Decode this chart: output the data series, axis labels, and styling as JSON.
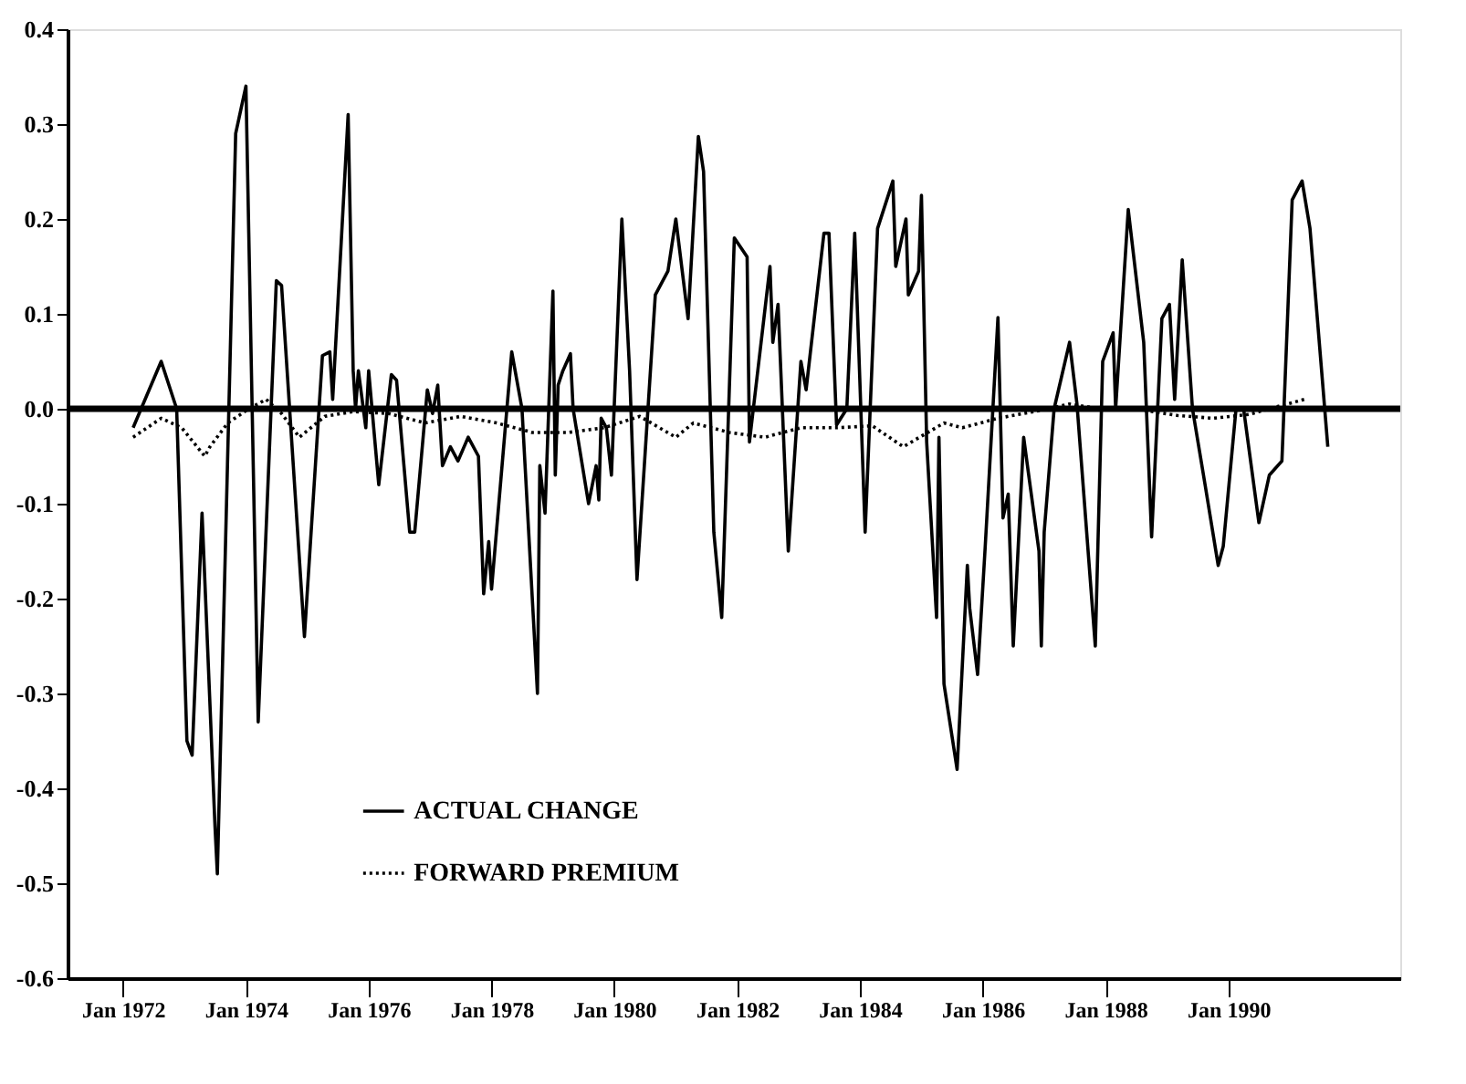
{
  "chart_data": {
    "type": "line",
    "xlim": [
      "1971-02-05",
      "1992-10-19"
    ],
    "xticks": [
      {
        "value": "1972-01-01",
        "label": "Jan 1972"
      },
      {
        "value": "1974-01-01",
        "label": "Jan 1974"
      },
      {
        "value": "1976-01-01",
        "label": "Jan 1976"
      },
      {
        "value": "1978-01-01",
        "label": "Jan 1978"
      },
      {
        "value": "1980-01-01",
        "label": "Jan 1980"
      },
      {
        "value": "1982-01-01",
        "label": "Jan 1982"
      },
      {
        "value": "1984-01-01",
        "label": "Jan 1984"
      },
      {
        "value": "1986-01-01",
        "label": "Jan 1986"
      },
      {
        "value": "1988-01-01",
        "label": "Jan 1988"
      },
      {
        "value": "1990-01-01",
        "label": "Jan 1990"
      }
    ],
    "ylim": [
      -0.6,
      0.4
    ],
    "yticks": [
      -0.6,
      -0.5,
      -0.4,
      -0.3,
      -0.2,
      -0.1,
      {
        "value": 0,
        "label": "0.0"
      },
      0.1,
      0.2,
      0.3,
      0.4
    ],
    "grid": false,
    "legend": "bottom left",
    "ref_lines": [
      {
        "axis": "y",
        "value": 0,
        "color": "#000000",
        "line_style": "solid"
      }
    ],
    "series": [
      {
        "name": "ACTUAL CHANGE",
        "color": "#000000",
        "line_style": "solid",
        "x": [
          "1972-03-01",
          "1972-08-15",
          "1972-11-15",
          "1973-01-15",
          "1973-02-15",
          "1973-04-15",
          "1973-07-01",
          "1973-07-15",
          "1973-11-01",
          "1974-01-01",
          "1974-03-15",
          "1974-07-01",
          "1974-08-01",
          "1974-12-15",
          "1975-04-01",
          "1975-05-15",
          "1975-06-01",
          "1975-09-01",
          "1975-10-01",
          "1975-10-15",
          "1975-11-01",
          "1975-12-15",
          "1976-01-01",
          "1976-03-01",
          "1976-05-15",
          "1976-06-15",
          "1976-09-01",
          "1976-10-01",
          "1976-12-15",
          "1977-01-15",
          "1977-02-15",
          "1977-03-15",
          "1977-05-01",
          "1977-06-15",
          "1977-08-15",
          "1977-10-15",
          "1977-11-15",
          "1977-12-15",
          "1978-01-01",
          "1978-05-01",
          "1978-07-01",
          "1978-10-01",
          "1978-10-15",
          "1978-11-15",
          "1979-01-01",
          "1979-01-15",
          "1979-02-01",
          "1979-03-01",
          "1979-04-15",
          "1979-05-01",
          "1979-08-01",
          "1979-09-15",
          "1979-10-01",
          "1979-10-15",
          "1979-11-15",
          "1979-12-15",
          "1980-02-15",
          "1980-04-01",
          "1980-05-15",
          "1980-09-01",
          "1980-11-15",
          "1981-01-01",
          "1981-03-15",
          "1981-05-15",
          "1981-06-15",
          "1981-08-15",
          "1981-10-01",
          "1981-12-15",
          "1982-03-01",
          "1982-03-15",
          "1982-07-15",
          "1982-08-01",
          "1982-09-01",
          "1982-11-01",
          "1983-01-15",
          "1983-02-15",
          "1983-06-01",
          "1983-07-01",
          "1983-08-15",
          "1983-10-15",
          "1983-12-01",
          "1984-02-01",
          "1984-04-15",
          "1984-07-15",
          "1984-08-01",
          "1984-10-01",
          "1984-10-15",
          "1984-12-15",
          "1985-01-01",
          "1985-02-01",
          "1985-04-01",
          "1985-04-15",
          "1985-05-15",
          "1985-08-01",
          "1985-10-01",
          "1985-10-15",
          "1985-12-01",
          "1986-01-15",
          "1986-04-01",
          "1986-05-01",
          "1986-06-01",
          "1986-07-01",
          "1986-09-01",
          "1986-10-01",
          "1986-12-01",
          "1986-12-15",
          "1987-01-01",
          "1987-03-01",
          "1987-06-01",
          "1987-07-15",
          "1987-11-01",
          "1987-12-15",
          "1988-02-15",
          "1988-03-01",
          "1988-05-15",
          "1988-08-15",
          "1988-10-01",
          "1988-12-01",
          "1989-01-15",
          "1989-02-15",
          "1989-04-01",
          "1989-06-01",
          "1989-08-15",
          "1989-11-01",
          "1989-12-01",
          "1990-02-15",
          "1990-04-01",
          "1990-07-01",
          "1990-09-01",
          "1990-11-15",
          "1991-01-15",
          "1991-03-15",
          "1991-05-01",
          "1991-08-15"
        ],
        "values": [
          -0.02,
          0.05,
          0.0,
          -0.35,
          -0.365,
          -0.11,
          -0.44,
          -0.49,
          0.29,
          0.34,
          -0.33,
          0.135,
          0.13,
          -0.24,
          0.056,
          0.06,
          0.01,
          0.31,
          0.04,
          0.0,
          0.04,
          -0.02,
          0.04,
          -0.08,
          0.036,
          0.03,
          -0.13,
          -0.13,
          0.02,
          -0.005,
          0.025,
          -0.06,
          -0.04,
          -0.055,
          -0.03,
          -0.05,
          -0.195,
          -0.14,
          -0.19,
          0.06,
          0.0,
          -0.3,
          -0.06,
          -0.11,
          0.124,
          -0.07,
          0.025,
          0.04,
          0.058,
          0.0,
          -0.1,
          -0.06,
          -0.096,
          -0.01,
          -0.02,
          -0.07,
          0.2,
          0.04,
          -0.18,
          0.12,
          0.145,
          0.2,
          0.095,
          0.287,
          0.25,
          -0.13,
          -0.22,
          0.18,
          0.16,
          -0.035,
          0.15,
          0.07,
          0.11,
          -0.15,
          0.05,
          0.02,
          0.185,
          0.185,
          -0.017,
          0.0,
          0.185,
          -0.13,
          0.19,
          0.24,
          0.15,
          0.2,
          0.12,
          0.145,
          0.225,
          -0.035,
          -0.22,
          -0.03,
          -0.29,
          -0.38,
          -0.165,
          -0.21,
          -0.28,
          -0.146,
          0.096,
          -0.115,
          -0.09,
          -0.25,
          -0.03,
          -0.07,
          -0.15,
          -0.25,
          -0.13,
          0.0,
          0.07,
          0.005,
          -0.25,
          0.05,
          0.08,
          0.0,
          0.21,
          0.07,
          -0.135,
          0.095,
          0.11,
          0.01,
          0.157,
          0.0,
          -0.08,
          -0.165,
          -0.145,
          0.0,
          0.0,
          -0.12,
          -0.07,
          -0.055,
          0.22,
          0.24,
          0.19,
          -0.04
        ]
      },
      {
        "name": "FORWARD PREMIUM",
        "color": "#000000",
        "line_style": "dotted",
        "x": [
          "1972-03-01",
          "1972-08-15",
          "1972-12-15",
          "1973-05-01",
          "1973-06-01",
          "1973-09-15",
          "1974-01-01",
          "1974-05-01",
          "1974-08-01",
          "1974-11-15",
          "1975-04-15",
          "1975-10-01",
          "1976-05-01",
          "1976-12-01",
          "1977-07-01",
          "1978-02-01",
          "1978-09-01",
          "1979-04-01",
          "1979-11-01",
          "1980-06-01",
          "1981-01-01",
          "1981-04-15",
          "1981-11-15",
          "1982-06-15",
          "1983-01-15",
          "1983-08-15",
          "1984-03-15",
          "1984-09-15",
          "1985-05-15",
          "1985-09-01",
          "1986-04-01",
          "1986-11-01",
          "1987-06-01",
          "1988-01-01",
          "1988-08-01",
          "1989-03-01",
          "1989-10-01",
          "1990-05-01",
          "1990-12-15",
          "1991-04-01"
        ],
        "values": [
          -0.03,
          -0.01,
          -0.02,
          -0.05,
          -0.04,
          -0.015,
          -0.002,
          0.01,
          -0.005,
          -0.03,
          -0.008,
          -0.003,
          -0.005,
          -0.015,
          -0.008,
          -0.015,
          -0.025,
          -0.025,
          -0.02,
          -0.008,
          -0.03,
          -0.015,
          -0.025,
          -0.03,
          -0.02,
          -0.02,
          -0.018,
          -0.04,
          -0.015,
          -0.02,
          -0.01,
          -0.003,
          0.005,
          -0.001,
          -0.001,
          -0.007,
          -0.01,
          -0.006,
          0.005,
          0.01
        ]
      }
    ]
  }
}
